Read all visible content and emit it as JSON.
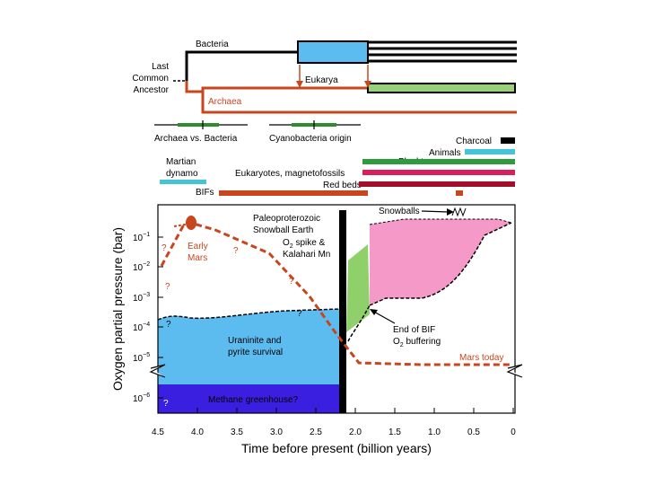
{
  "tree": {
    "bacteria": "Bacteria",
    "lca_line1": "Last",
    "lca_line2": "Common",
    "lca_line3": "Ancestor",
    "eukarya": "Eukarya",
    "archaea": "Archaea"
  },
  "markers": {
    "archaea_vs_bacteria": "Archaea vs. Bacteria",
    "cyanobacteria_origin": "Cyanobacteria origin"
  },
  "records": {
    "charcoal": "Charcoal",
    "animals": "Animals",
    "plankton": "Plankton",
    "martian_line1": "Martian",
    "martian_line2": "dynamo",
    "eukaryotes": "Eukaryotes, magnetofossils",
    "red_beds": "Red beds",
    "bifs": "BIFs"
  },
  "plot": {
    "snowballs": "Snowballs",
    "paleo_line1": "Paleoproterozoic",
    "paleo_line2": "Snowball Earth",
    "o2_line1": "O",
    "o2_sub": "2",
    "o2_line1_rest": " spike &",
    "o2_line2": "Kalahari Mn",
    "early_mars_1": "Early",
    "early_mars_2": "Mars",
    "q": "?",
    "uraninite_1": "Uraninite and",
    "uraninite_2": "pyrite survival",
    "methane": "Methane greenhouse?",
    "end_bif_1": "End of BIF",
    "end_bif_2a": "O",
    "end_bif_2sub": "2",
    "end_bif_2b": " buffering",
    "mars_today": "Mars today"
  },
  "axes": {
    "ylabel": "Oxygen partial pressure (bar)",
    "xlabel": "Time before present (billion years)",
    "x_ticks": [
      "4.5",
      "4.0",
      "3.5",
      "3.0",
      "2.5",
      "2.0",
      "1.5",
      "1.0",
      "0.5",
      "0"
    ],
    "y_ticks": [
      {
        "base": "10",
        "exp": "−1"
      },
      {
        "base": "10",
        "exp": "−2"
      },
      {
        "base": "10",
        "exp": "−3"
      },
      {
        "base": "10",
        "exp": "−4"
      },
      {
        "base": "10",
        "exp": "−5"
      },
      {
        "base": "10",
        "exp": "−6"
      }
    ]
  },
  "colors": {
    "bacteria_box": "#5cbcf0",
    "eukarya_box": "#9bd07a",
    "archaea": "#c8461e",
    "green_marker": "#2e8b2e",
    "charcoal": "#000000",
    "animals": "#45c4d8",
    "plankton": "#2e9b3e",
    "martian": "#45c4d8",
    "eukaryotes": "#d81e5b",
    "red_beds": "#a0102a",
    "bifs": "#c8461e",
    "uraninite": "#5cbcf0",
    "methane": "#3a1fe0",
    "green_wedge": "#8fd06a",
    "pink": "#f59ac8",
    "mars_line": "#c8461e"
  }
}
